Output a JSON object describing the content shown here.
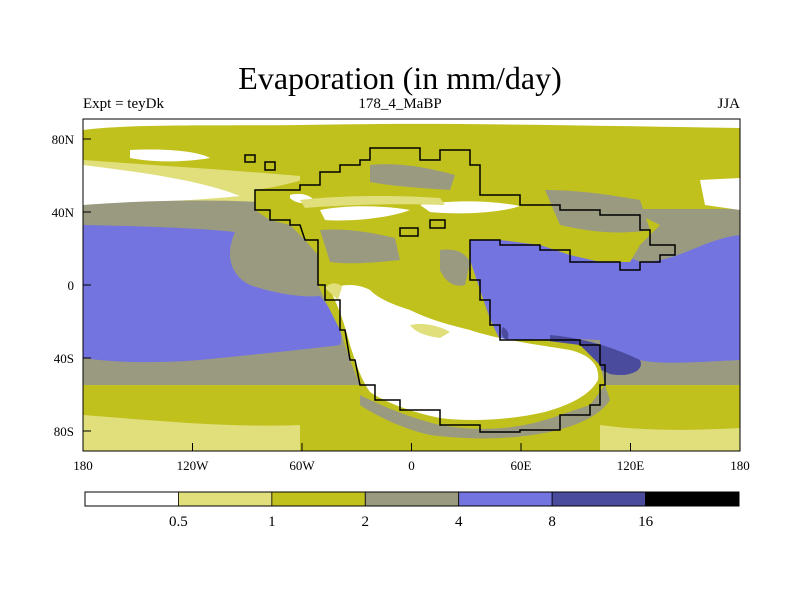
{
  "title": "Evaporation (in mm/day)",
  "left_label": "Expt = teyDk",
  "center_label": "178_4_MaBP",
  "right_label": "JJA",
  "lon_ticks": [
    "180",
    "120W",
    "60W",
    "0",
    "60E",
    "120E",
    "180"
  ],
  "lat_ticks": [
    "80N",
    "40N",
    "0",
    "40S",
    "80S"
  ],
  "colorbar": {
    "colors": [
      "#ffffff",
      "#e0df7c",
      "#c1c11e",
      "#9a9a80",
      "#7474e0",
      "#4b4b9e",
      "#000000"
    ],
    "labels": [
      "0.5",
      "1",
      "2",
      "4",
      "8",
      "16"
    ]
  }
}
